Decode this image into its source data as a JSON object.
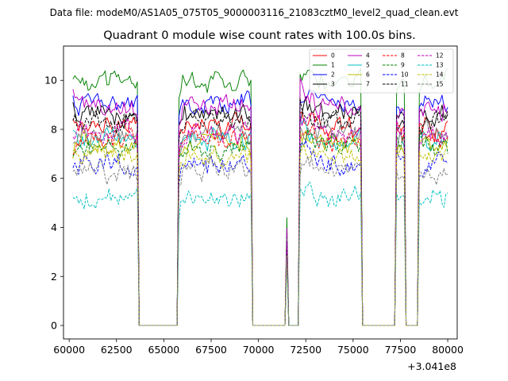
{
  "suptitle": "Data file: modeM0/AS1A05_075T05_9000003116_21083cztM0_level2_quad_clean.evt",
  "chart_data": {
    "type": "line",
    "title": "Quadrant 0 module wise count rates with 100.0s bins.",
    "xlabel": "",
    "ylabel": "",
    "x_offset_label": "+3.041e8",
    "xlim": [
      59700,
      80500
    ],
    "ylim": [
      -0.55,
      11.4
    ],
    "x_ticks": [
      60000,
      62500,
      65000,
      67500,
      70000,
      72500,
      75000,
      77500,
      80000
    ],
    "x_tick_labels": [
      "60000",
      "62500",
      "65000",
      "67500",
      "70000",
      "72500",
      "75000",
      "77500",
      "80000"
    ],
    "y_ticks": [
      0,
      2,
      4,
      6,
      8,
      10
    ],
    "y_tick_labels": [
      "0",
      "2",
      "4",
      "6",
      "8",
      "10"
    ],
    "x_start": 60200,
    "x_end": 80000,
    "bin": 100,
    "on_intervals": [
      [
        60200,
        63600
      ],
      [
        65800,
        69600
      ],
      [
        72200,
        75400
      ],
      [
        77300,
        77700
      ],
      [
        78500,
        80000
      ]
    ],
    "spikes": [
      {
        "x": 71500,
        "scale": 0.43
      }
    ],
    "legend_position": "top-right",
    "series": [
      {
        "name": "0",
        "level": 8.1,
        "color": "#ff0000",
        "dash": "solid"
      },
      {
        "name": "1",
        "level": 10.0,
        "color": "#008000",
        "dash": "solid"
      },
      {
        "name": "2",
        "level": 9.1,
        "color": "#0000ff",
        "dash": "solid"
      },
      {
        "name": "3",
        "level": 8.6,
        "color": "#000000",
        "dash": "solid"
      },
      {
        "name": "4",
        "level": 8.9,
        "color": "#bf00bf",
        "dash": "solid"
      },
      {
        "name": "5",
        "level": 7.5,
        "color": "#00bfbf",
        "dash": "solid"
      },
      {
        "name": "6",
        "level": 7.4,
        "color": "#bfbf00",
        "dash": "solid"
      },
      {
        "name": "7",
        "level": 7.8,
        "color": "#808080",
        "dash": "solid"
      },
      {
        "name": "8",
        "level": 7.6,
        "color": "#ff0000",
        "dash": "dashed"
      },
      {
        "name": "9",
        "level": 7.3,
        "color": "#008000",
        "dash": "dashed"
      },
      {
        "name": "10",
        "level": 6.6,
        "color": "#0000ff",
        "dash": "dashed"
      },
      {
        "name": "11",
        "level": 8.3,
        "color": "#000000",
        "dash": "dashed"
      },
      {
        "name": "12",
        "level": 7.9,
        "color": "#bf00bf",
        "dash": "dashed"
      },
      {
        "name": "13",
        "level": 5.2,
        "color": "#00bfbf",
        "dash": "dashed"
      },
      {
        "name": "14",
        "level": 6.9,
        "color": "#bfbf00",
        "dash": "dashed"
      },
      {
        "name": "15",
        "level": 6.3,
        "color": "#808080",
        "dash": "dashed"
      }
    ]
  }
}
